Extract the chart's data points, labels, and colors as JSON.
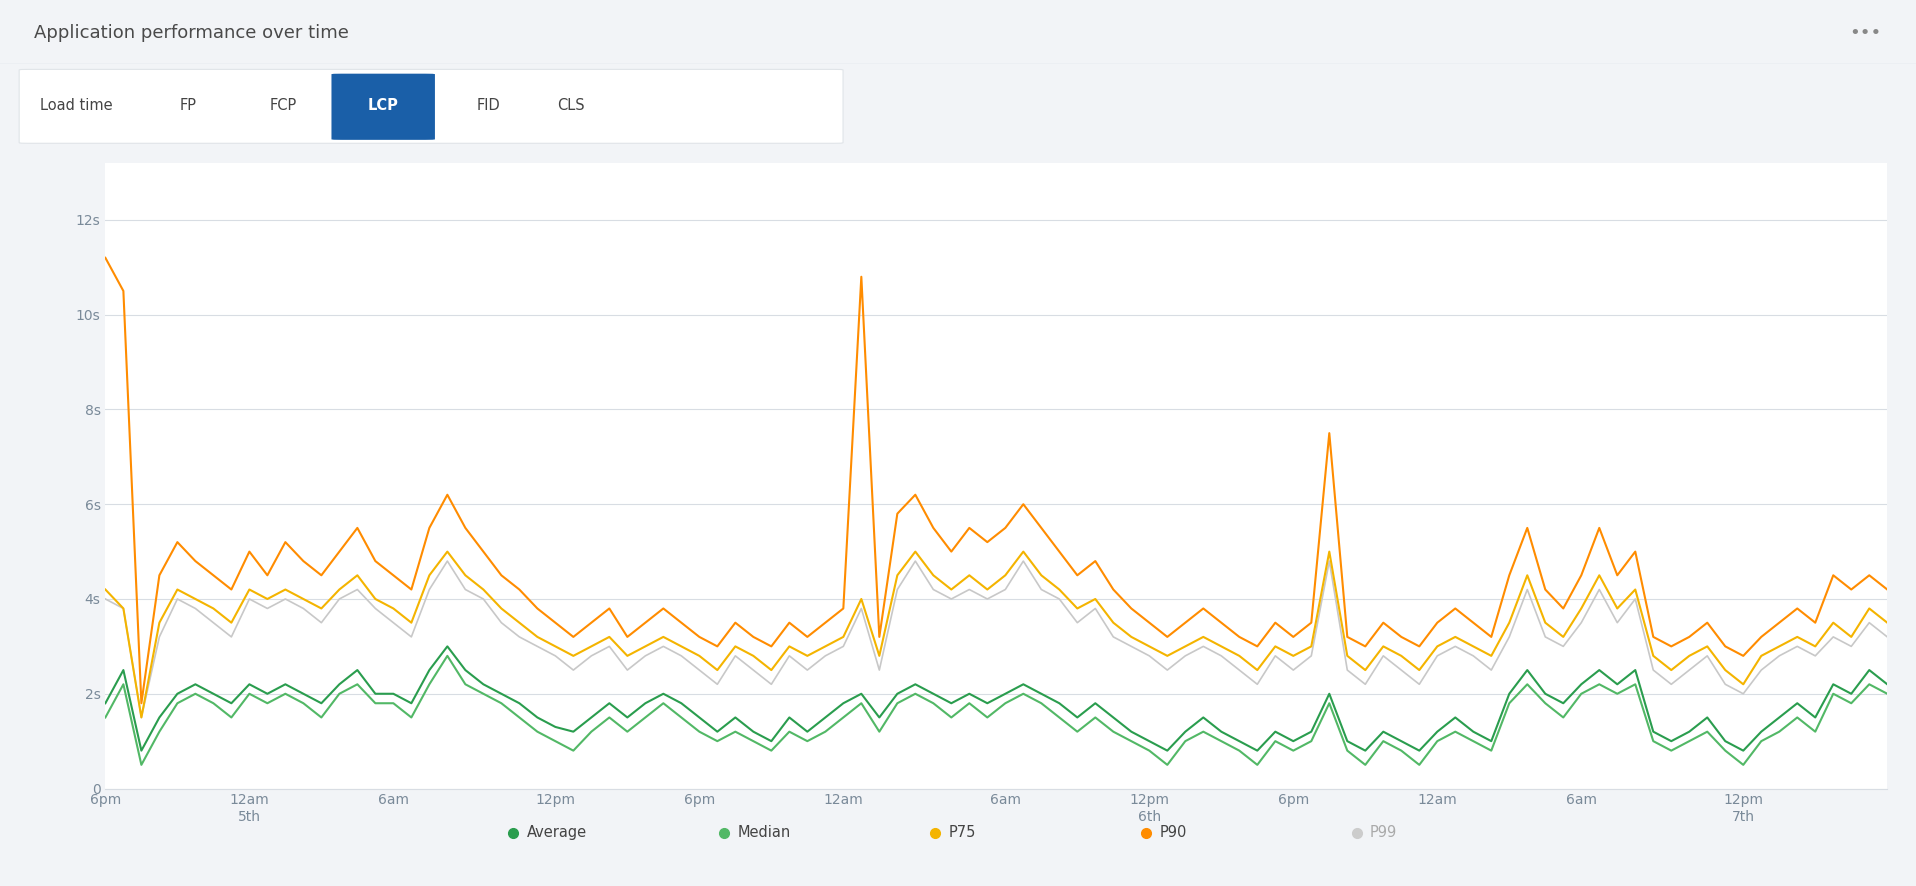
{
  "title": "Application performance over time",
  "three_dots": "•••",
  "tabs": [
    "Load time",
    "FP",
    "FCP",
    "LCP",
    "FID",
    "CLS"
  ],
  "active_tab": "LCP",
  "active_tab_bg": "#1a5fa8",
  "active_tab_fg": "#ffffff",
  "inactive_tab_fg": "#444444",
  "ytick_labels": [
    "0",
    "2s",
    "4s",
    "6s",
    "8s",
    "10s",
    "12s"
  ],
  "yticks": [
    0,
    2,
    4,
    6,
    8,
    10,
    12
  ],
  "ylim": [
    0,
    13.2
  ],
  "xtick_labels": [
    "6pm",
    "12am\n5th",
    "6am",
    "12pm",
    "6pm",
    "12am",
    "6am",
    "12pm\n6th",
    "6pm",
    "12am",
    "6am",
    "12pm\n7th"
  ],
  "bg_color": "#f2f4f7",
  "header_bg": "#f2f4f7",
  "tabs_bg": "#ffffff",
  "plot_bg": "#ffffff",
  "grid_color": "#d8dde3",
  "legend_items": [
    "Average",
    "Median",
    "P75",
    "P90",
    "P99"
  ],
  "legend_colors": [
    "#2a9d4e",
    "#52b866",
    "#f4b400",
    "#ff8c00",
    "#c8c8c8"
  ],
  "legend_active": [
    true,
    true,
    true,
    true,
    false
  ],
  "series_p90": [
    11.2,
    10.5,
    1.8,
    4.5,
    5.2,
    4.8,
    4.5,
    4.2,
    5.0,
    4.5,
    5.2,
    4.8,
    4.5,
    5.0,
    5.5,
    4.8,
    4.5,
    4.2,
    5.5,
    6.2,
    5.5,
    5.0,
    4.5,
    4.2,
    3.8,
    3.5,
    3.2,
    3.5,
    3.8,
    3.2,
    3.5,
    3.8,
    3.5,
    3.2,
    3.0,
    3.5,
    3.2,
    3.0,
    3.5,
    3.2,
    3.5,
    3.8,
    10.8,
    3.2,
    5.8,
    6.2,
    5.5,
    5.0,
    5.5,
    5.2,
    5.5,
    6.0,
    5.5,
    5.0,
    4.5,
    4.8,
    4.2,
    3.8,
    3.5,
    3.2,
    3.5,
    3.8,
    3.5,
    3.2,
    3.0,
    3.5,
    3.2,
    3.5,
    7.5,
    3.2,
    3.0,
    3.5,
    3.2,
    3.0,
    3.5,
    3.8,
    3.5,
    3.2,
    4.5,
    5.5,
    4.2,
    3.8,
    4.5,
    5.5,
    4.5,
    5.0,
    3.2,
    3.0,
    3.2,
    3.5,
    3.0,
    2.8,
    3.2,
    3.5,
    3.8,
    3.5,
    4.5,
    4.2,
    4.5,
    4.2
  ],
  "series_p75": [
    4.2,
    3.8,
    1.5,
    3.5,
    4.2,
    4.0,
    3.8,
    3.5,
    4.2,
    4.0,
    4.2,
    4.0,
    3.8,
    4.2,
    4.5,
    4.0,
    3.8,
    3.5,
    4.5,
    5.0,
    4.5,
    4.2,
    3.8,
    3.5,
    3.2,
    3.0,
    2.8,
    3.0,
    3.2,
    2.8,
    3.0,
    3.2,
    3.0,
    2.8,
    2.5,
    3.0,
    2.8,
    2.5,
    3.0,
    2.8,
    3.0,
    3.2,
    4.0,
    2.8,
    4.5,
    5.0,
    4.5,
    4.2,
    4.5,
    4.2,
    4.5,
    5.0,
    4.5,
    4.2,
    3.8,
    4.0,
    3.5,
    3.2,
    3.0,
    2.8,
    3.0,
    3.2,
    3.0,
    2.8,
    2.5,
    3.0,
    2.8,
    3.0,
    5.0,
    2.8,
    2.5,
    3.0,
    2.8,
    2.5,
    3.0,
    3.2,
    3.0,
    2.8,
    3.5,
    4.5,
    3.5,
    3.2,
    3.8,
    4.5,
    3.8,
    4.2,
    2.8,
    2.5,
    2.8,
    3.0,
    2.5,
    2.2,
    2.8,
    3.0,
    3.2,
    3.0,
    3.5,
    3.2,
    3.8,
    3.5
  ],
  "series_avg": [
    1.8,
    2.5,
    0.8,
    1.5,
    2.0,
    2.2,
    2.0,
    1.8,
    2.2,
    2.0,
    2.2,
    2.0,
    1.8,
    2.2,
    2.5,
    2.0,
    2.0,
    1.8,
    2.5,
    3.0,
    2.5,
    2.2,
    2.0,
    1.8,
    1.5,
    1.3,
    1.2,
    1.5,
    1.8,
    1.5,
    1.8,
    2.0,
    1.8,
    1.5,
    1.2,
    1.5,
    1.2,
    1.0,
    1.5,
    1.2,
    1.5,
    1.8,
    2.0,
    1.5,
    2.0,
    2.2,
    2.0,
    1.8,
    2.0,
    1.8,
    2.0,
    2.2,
    2.0,
    1.8,
    1.5,
    1.8,
    1.5,
    1.2,
    1.0,
    0.8,
    1.2,
    1.5,
    1.2,
    1.0,
    0.8,
    1.2,
    1.0,
    1.2,
    2.0,
    1.0,
    0.8,
    1.2,
    1.0,
    0.8,
    1.2,
    1.5,
    1.2,
    1.0,
    2.0,
    2.5,
    2.0,
    1.8,
    2.2,
    2.5,
    2.2,
    2.5,
    1.2,
    1.0,
    1.2,
    1.5,
    1.0,
    0.8,
    1.2,
    1.5,
    1.8,
    1.5,
    2.2,
    2.0,
    2.5,
    2.2
  ],
  "series_med": [
    1.5,
    2.2,
    0.5,
    1.2,
    1.8,
    2.0,
    1.8,
    1.5,
    2.0,
    1.8,
    2.0,
    1.8,
    1.5,
    2.0,
    2.2,
    1.8,
    1.8,
    1.5,
    2.2,
    2.8,
    2.2,
    2.0,
    1.8,
    1.5,
    1.2,
    1.0,
    0.8,
    1.2,
    1.5,
    1.2,
    1.5,
    1.8,
    1.5,
    1.2,
    1.0,
    1.2,
    1.0,
    0.8,
    1.2,
    1.0,
    1.2,
    1.5,
    1.8,
    1.2,
    1.8,
    2.0,
    1.8,
    1.5,
    1.8,
    1.5,
    1.8,
    2.0,
    1.8,
    1.5,
    1.2,
    1.5,
    1.2,
    1.0,
    0.8,
    0.5,
    1.0,
    1.2,
    1.0,
    0.8,
    0.5,
    1.0,
    0.8,
    1.0,
    1.8,
    0.8,
    0.5,
    1.0,
    0.8,
    0.5,
    1.0,
    1.2,
    1.0,
    0.8,
    1.8,
    2.2,
    1.8,
    1.5,
    2.0,
    2.2,
    2.0,
    2.2,
    1.0,
    0.8,
    1.0,
    1.2,
    0.8,
    0.5,
    1.0,
    1.2,
    1.5,
    1.2,
    2.0,
    1.8,
    2.2,
    2.0
  ],
  "series_p99": [
    4.0,
    3.8,
    1.5,
    3.2,
    4.0,
    3.8,
    3.5,
    3.2,
    4.0,
    3.8,
    4.0,
    3.8,
    3.5,
    4.0,
    4.2,
    3.8,
    3.5,
    3.2,
    4.2,
    4.8,
    4.2,
    4.0,
    3.5,
    3.2,
    3.0,
    2.8,
    2.5,
    2.8,
    3.0,
    2.5,
    2.8,
    3.0,
    2.8,
    2.5,
    2.2,
    2.8,
    2.5,
    2.2,
    2.8,
    2.5,
    2.8,
    3.0,
    3.8,
    2.5,
    4.2,
    4.8,
    4.2,
    4.0,
    4.2,
    4.0,
    4.2,
    4.8,
    4.2,
    4.0,
    3.5,
    3.8,
    3.2,
    3.0,
    2.8,
    2.5,
    2.8,
    3.0,
    2.8,
    2.5,
    2.2,
    2.8,
    2.5,
    2.8,
    4.8,
    2.5,
    2.2,
    2.8,
    2.5,
    2.2,
    2.8,
    3.0,
    2.8,
    2.5,
    3.2,
    4.2,
    3.2,
    3.0,
    3.5,
    4.2,
    3.5,
    4.0,
    2.5,
    2.2,
    2.5,
    2.8,
    2.2,
    2.0,
    2.5,
    2.8,
    3.0,
    2.8,
    3.2,
    3.0,
    3.5,
    3.2
  ]
}
